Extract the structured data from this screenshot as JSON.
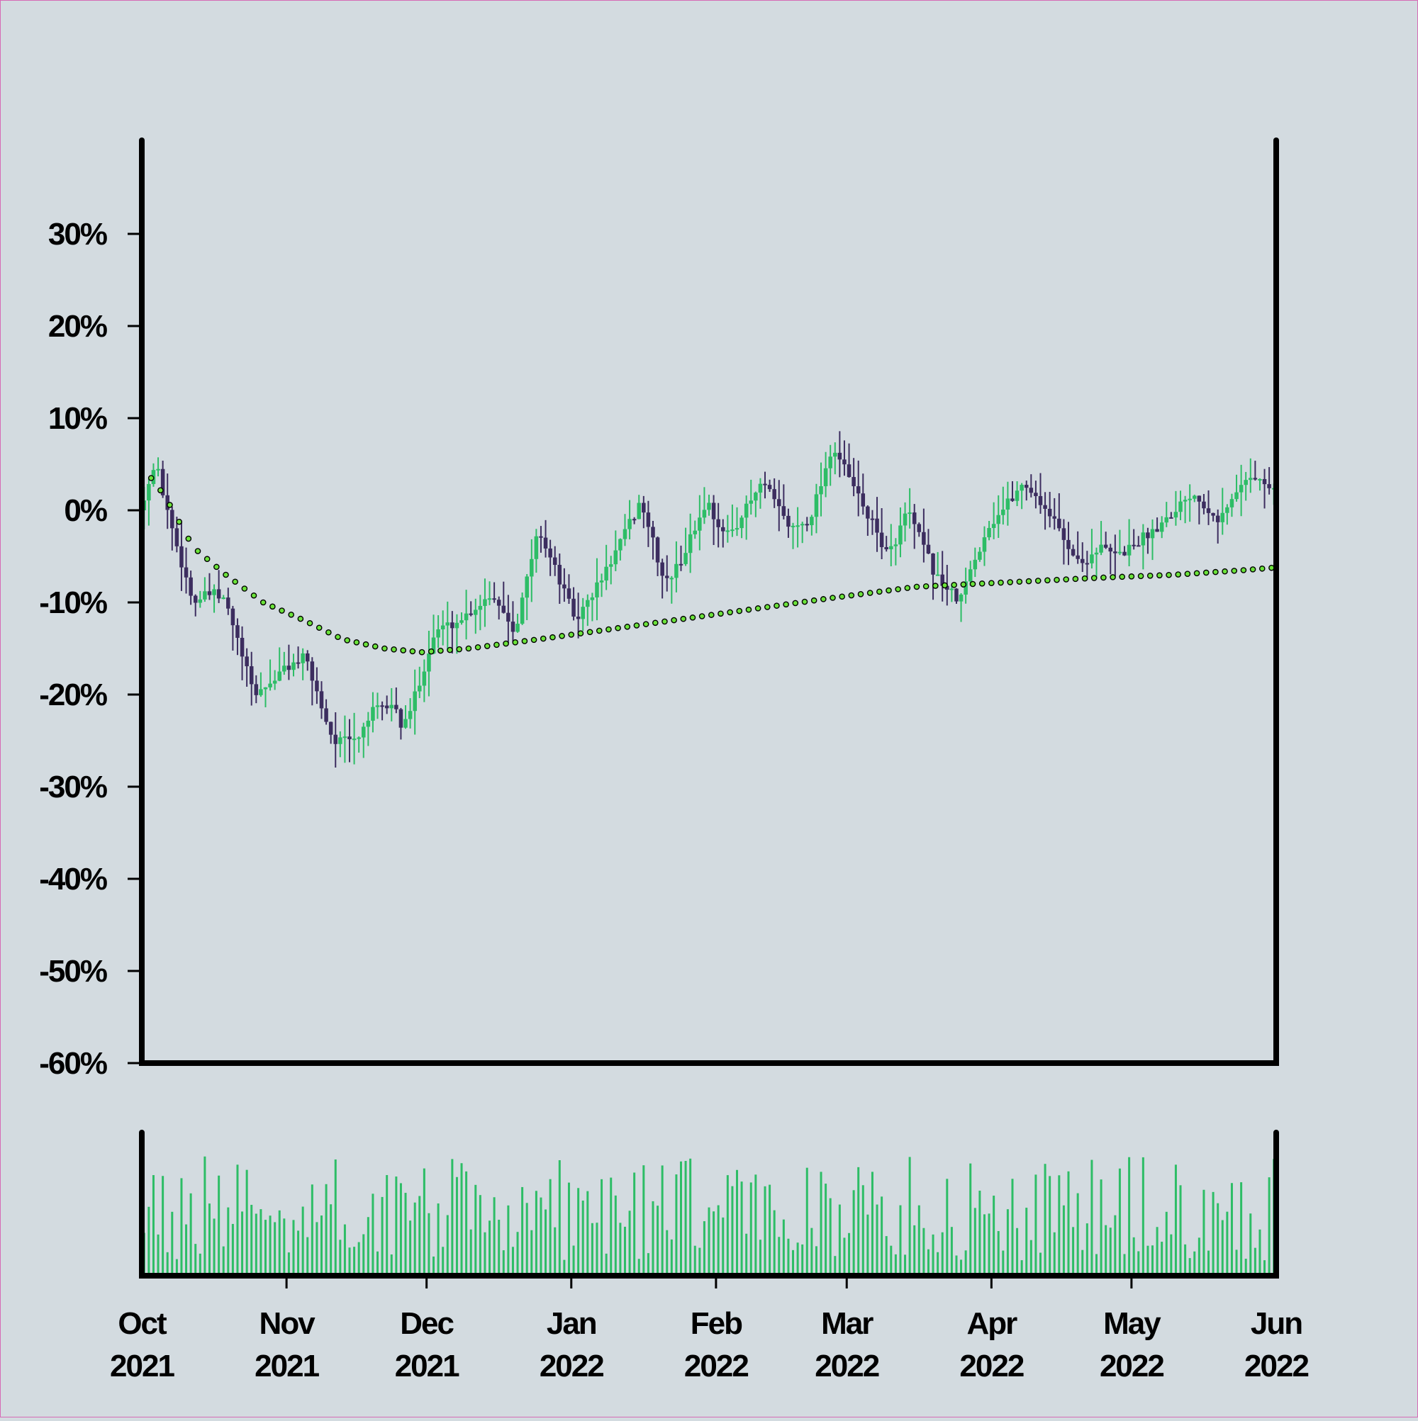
{
  "chart_data": {
    "type": "candlestick",
    "title": "",
    "xlabel": "",
    "ylabel": "",
    "x_range": [
      "2021-10-01",
      "2022-06-01"
    ],
    "y_range": [
      -60,
      40
    ],
    "y_ticks": [
      30,
      20,
      10,
      0,
      -10,
      -20,
      -30,
      -40,
      -50,
      -60
    ],
    "y_tick_labels": [
      "30%",
      "20%",
      "10%",
      "0%",
      "-10%",
      "-20%",
      "-30%",
      "-40%",
      "-50%",
      "-60%"
    ],
    "x_ticks": [
      "2021-10-01",
      "2021-11-01",
      "2021-12-01",
      "2022-01-01",
      "2022-02-01",
      "2022-03-01",
      "2022-04-01",
      "2022-05-01",
      "2022-06-01"
    ],
    "x_tick_labels": [
      [
        "Oct",
        "2021"
      ],
      [
        "Nov",
        "2021"
      ],
      [
        "Dec",
        "2021"
      ],
      [
        "Jan",
        "2022"
      ],
      [
        "Feb",
        "2022"
      ],
      [
        "Mar",
        "2022"
      ],
      [
        "Apr",
        "2022"
      ],
      [
        "May",
        "2022"
      ],
      [
        "Jun",
        "2022"
      ]
    ],
    "close_anchors": [
      [
        "2021-10-01",
        1
      ],
      [
        "2021-10-04",
        5
      ],
      [
        "2021-10-08",
        -3
      ],
      [
        "2021-10-12",
        -10
      ],
      [
        "2021-10-16",
        -9
      ],
      [
        "2021-10-19",
        -10
      ],
      [
        "2021-10-25",
        -20
      ],
      [
        "2021-10-28",
        -19
      ],
      [
        "2021-11-01",
        -17
      ],
      [
        "2021-11-05",
        -16
      ],
      [
        "2021-11-11",
        -25
      ],
      [
        "2021-11-16",
        -25
      ],
      [
        "2021-11-19",
        -22
      ],
      [
        "2021-11-24",
        -21
      ],
      [
        "2021-11-26",
        -24
      ],
      [
        "2021-12-03",
        -13
      ],
      [
        "2021-12-08",
        -12
      ],
      [
        "2021-12-15",
        -9
      ],
      [
        "2021-12-20",
        -13
      ],
      [
        "2021-12-25",
        -2
      ],
      [
        "2022-01-02",
        -12
      ],
      [
        "2022-01-08",
        -7
      ],
      [
        "2022-01-16",
        1
      ],
      [
        "2022-01-21",
        -8
      ],
      [
        "2022-01-24",
        -6
      ],
      [
        "2022-01-30",
        1
      ],
      [
        "2022-02-03",
        -3
      ],
      [
        "2022-02-06",
        -1
      ],
      [
        "2022-02-11",
        3
      ],
      [
        "2022-02-17",
        -2
      ],
      [
        "2022-02-21",
        -1
      ],
      [
        "2022-02-26",
        7
      ],
      [
        "2022-03-03",
        2
      ],
      [
        "2022-03-10",
        -5
      ],
      [
        "2022-03-14",
        0
      ],
      [
        "2022-03-20",
        -7
      ],
      [
        "2022-03-25",
        -10
      ],
      [
        "2022-03-31",
        -2
      ],
      [
        "2022-04-08",
        3
      ],
      [
        "2022-04-13",
        0
      ],
      [
        "2022-04-20",
        -6
      ],
      [
        "2022-04-24",
        -4
      ],
      [
        "2022-04-28",
        -5
      ],
      [
        "2022-05-06",
        -2
      ],
      [
        "2022-05-14",
        2
      ],
      [
        "2022-05-20",
        -1
      ],
      [
        "2022-05-26",
        4
      ],
      [
        "2022-06-01",
        2
      ]
    ],
    "moving_average": [
      [
        "2021-10-03",
        3.5
      ],
      [
        "2021-10-06",
        1.5
      ],
      [
        "2021-10-12",
        -4
      ],
      [
        "2021-10-19",
        -7
      ],
      [
        "2021-10-27",
        -10
      ],
      [
        "2021-11-05",
        -12
      ],
      [
        "2021-11-13",
        -14
      ],
      [
        "2021-11-22",
        -15
      ],
      [
        "2021-11-30",
        -15.4
      ],
      [
        "2021-12-10",
        -15
      ],
      [
        "2021-12-25",
        -14
      ],
      [
        "2022-01-15",
        -12.5
      ],
      [
        "2022-02-05",
        -11
      ],
      [
        "2022-02-26",
        -9.5
      ],
      [
        "2022-03-16",
        -8.3
      ],
      [
        "2022-04-05",
        -7.8
      ],
      [
        "2022-04-25",
        -7.3
      ],
      [
        "2022-05-10",
        -7
      ],
      [
        "2022-05-25",
        -6.5
      ],
      [
        "2022-06-01",
        -6.2
      ]
    ],
    "series": [
      {
        "type": "ohlc",
        "up_color": "#2dbd66",
        "down_color": "#3c2d5f"
      },
      {
        "type": "moving_average",
        "marker": "dot",
        "color": "#6be33a"
      },
      {
        "type": "volume",
        "color": "#2dbd66"
      }
    ],
    "grid": false,
    "legend": "none"
  }
}
